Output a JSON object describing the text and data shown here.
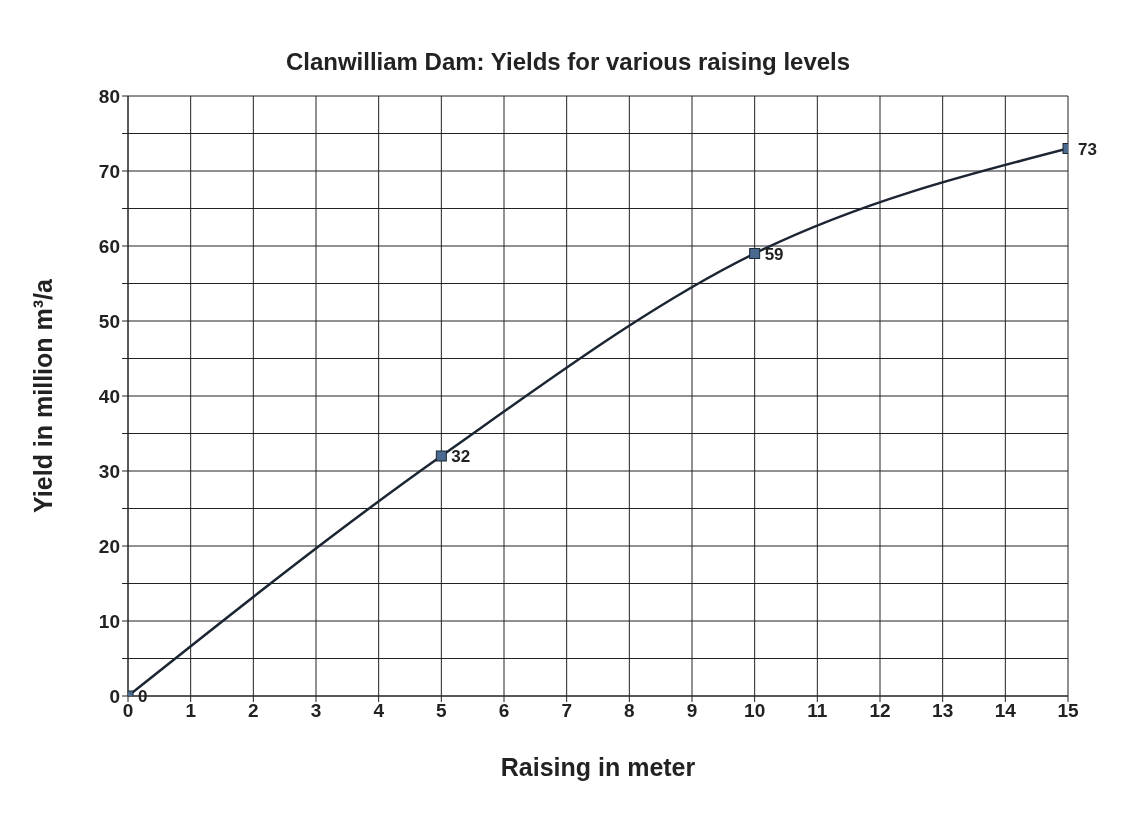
{
  "chart_data": {
    "type": "line",
    "title": "Clanwilliam Dam: Yields for various raising levels",
    "xlabel": "Raising in meter",
    "ylabel": "Yield in million m³/a",
    "x": [
      0,
      5,
      10,
      15
    ],
    "series": [
      {
        "color": "#1c2633",
        "values": [
          0,
          32,
          59,
          73
        ]
      }
    ],
    "xlim": [
      0,
      15
    ],
    "xticks": [
      0,
      1,
      2,
      3,
      4,
      5,
      6,
      7,
      8,
      9,
      10,
      11,
      12,
      13,
      14,
      15
    ],
    "ylim": [
      0,
      80
    ],
    "yticks": [
      0,
      {
        "value": 5,
        "label": null
      },
      10,
      {
        "value": 15,
        "label": null
      },
      20,
      {
        "value": 25,
        "label": null
      },
      30,
      {
        "value": 35,
        "label": null
      },
      40,
      {
        "value": 45,
        "label": null
      },
      50,
      {
        "value": 55,
        "label": null
      },
      60,
      {
        "value": 65,
        "label": null
      },
      70,
      {
        "value": 75,
        "label": null
      },
      80
    ],
    "grid": true,
    "marker": "square",
    "line_style": "solid",
    "data_labels": true
  }
}
